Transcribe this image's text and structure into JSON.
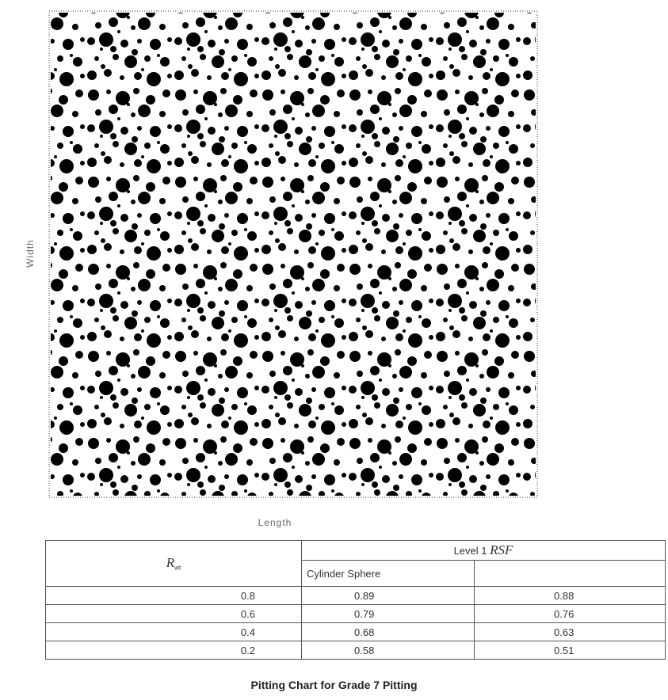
{
  "figure": {
    "y_label": "Width",
    "x_label": "Length"
  },
  "table": {
    "header": {
      "r_symbol": "R",
      "r_subscript": "wt",
      "level": "Level 1",
      "rsf": "RSF",
      "sub_columns": "Cylinder Sphere"
    },
    "rows": [
      [
        0.8,
        0.89,
        0.88
      ],
      [
        0.6,
        0.79,
        0.76
      ],
      [
        0.4,
        0.68,
        0.63
      ],
      [
        0.2,
        0.58,
        0.51
      ]
    ]
  },
  "caption": "Pitting Chart for Grade 7 Pitting"
}
